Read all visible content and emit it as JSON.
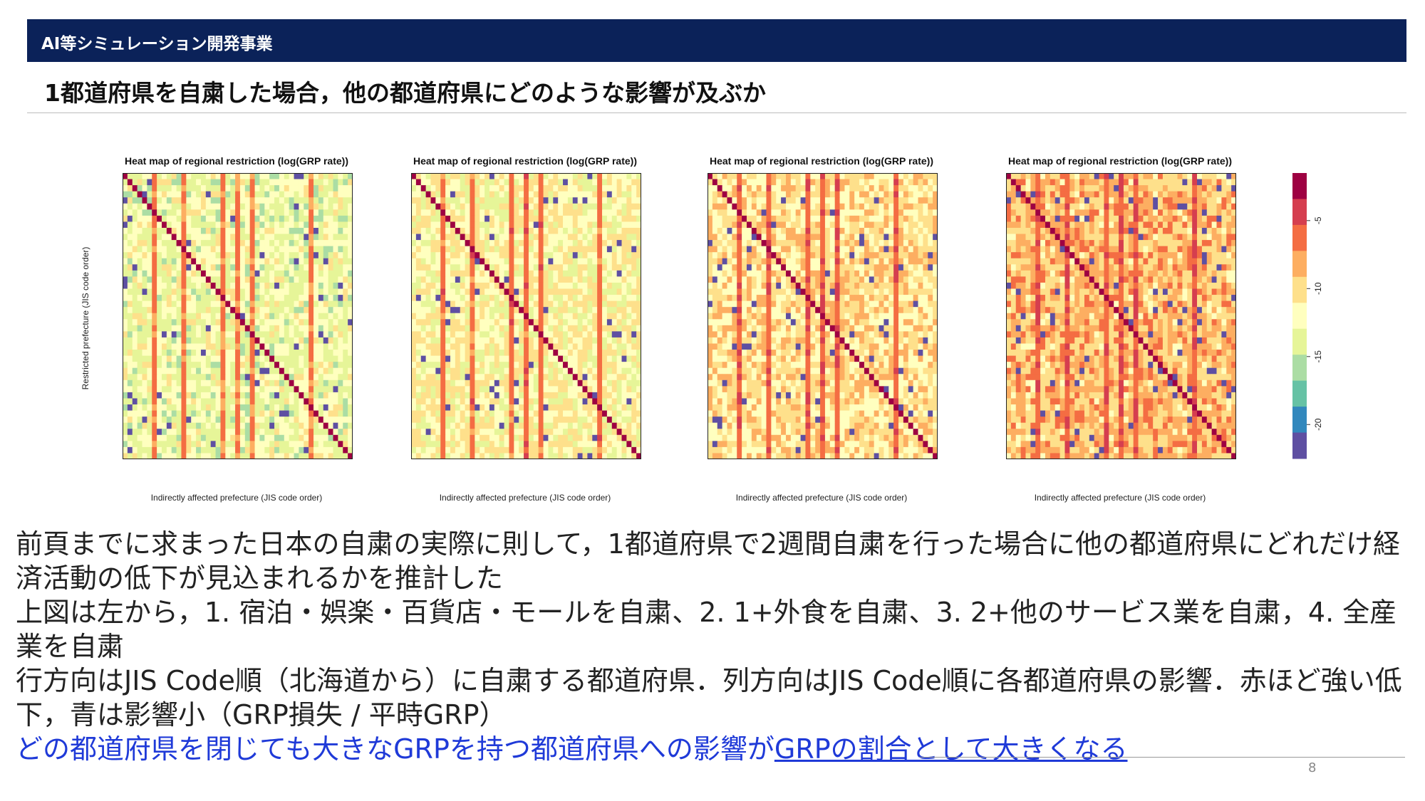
{
  "header": {
    "label": "AI等シミュレーション開発事業"
  },
  "subtitle": "1都道府県を自粛した場合，他の都道府県にどのような影響が及ぶか",
  "chart_data": {
    "type": "heatmap",
    "panels": [
      {
        "title": "Heat map of regional restriction (log(GRP rate))",
        "xlabel": "Indirectly affected prefecture (JIS code order)",
        "ylabel": "Restricted prefecture (JIS code order)",
        "scenario": 1
      },
      {
        "title": "Heat map of regional restriction (log(GRP rate))",
        "xlabel": "Indirectly affected prefecture (JIS code order)",
        "ylabel": "",
        "scenario": 2
      },
      {
        "title": "Heat map of regional restriction (log(GRP rate))",
        "xlabel": "Indirectly affected prefecture (JIS code order)",
        "ylabel": "",
        "scenario": 3
      },
      {
        "title": "Heat map of regional restriction (log(GRP rate))",
        "xlabel": "Indirectly affected prefecture (JIS code order)",
        "ylabel": "",
        "scenario": 4
      }
    ],
    "rows": 47,
    "cols": 47,
    "colorbar": {
      "ticks": [
        "-5",
        "-10",
        "-15",
        "-20"
      ],
      "tick_values": [
        -5,
        -10,
        -15,
        -20
      ],
      "range": [
        -22.5,
        -1.5
      ],
      "colors": [
        "#9e0142",
        "#d53e4f",
        "#f46d43",
        "#fdae61",
        "#fee08b",
        "#ffffbf",
        "#e6f598",
        "#abdda4",
        "#66c2a5",
        "#3288bd",
        "#5e4fa2"
      ]
    }
  },
  "body": {
    "line1": "前頁までに求まった日本の自粛の実際に則して，1都道府県で2週間自粛を行った場合に他の都道府県にどれだけ経済活動の低下が見込まれるかを推計した",
    "line2": "上図は左から，1. 宿泊・娯楽・百貨店・モールを自粛、2. 1+外食を自粛、3. 2+他のサービス業を自粛，4. 全産業を自粛",
    "line3": "行方向はJIS Code順（北海道から）に自粛する都道府県．列方向はJIS Code順に各都道府県の影響．赤ほど強い低下，青は影響小（GRP損失 / 平時GRP）",
    "conclusion_a": "どの都道府県を閉じても大きなGRPを持つ都道府県への影響が",
    "conclusion_b": "GRPの割合として大きくなる"
  },
  "page_number": "8"
}
